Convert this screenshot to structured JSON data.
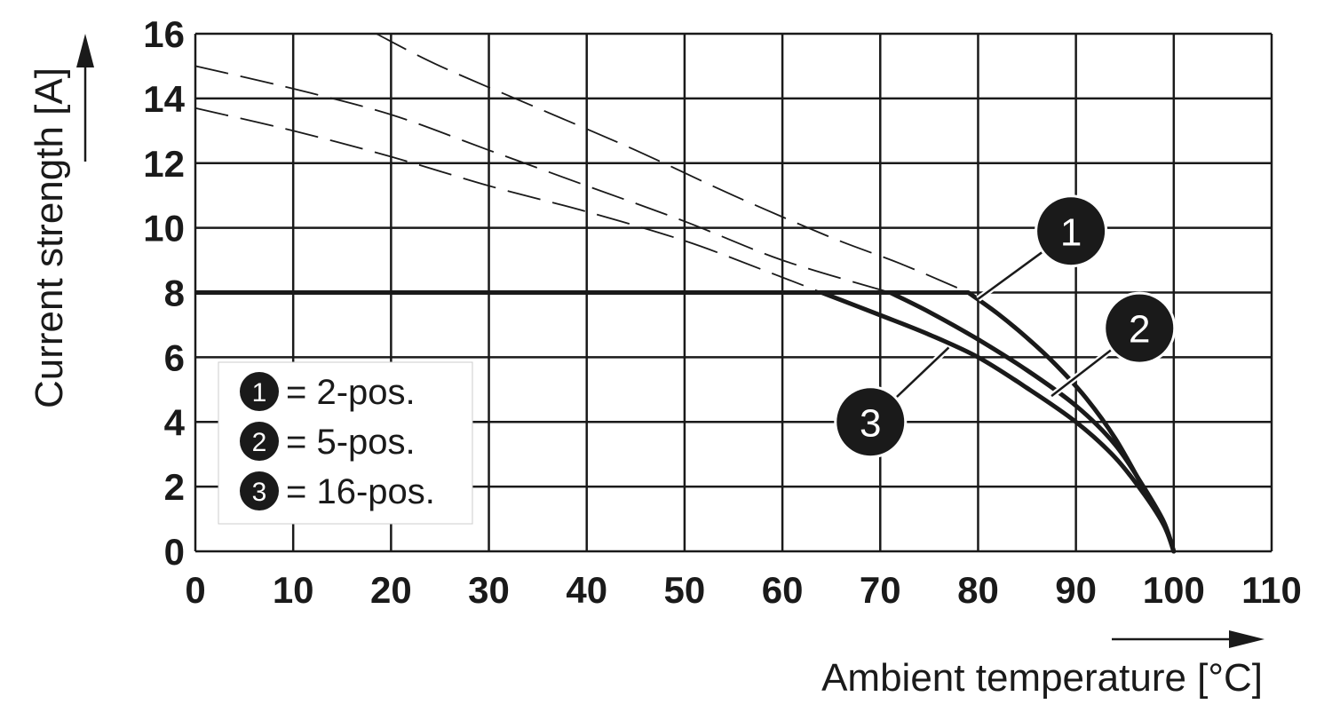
{
  "chart_data": {
    "type": "line",
    "xlabel": "Ambient temperature [°C]",
    "ylabel": "Current strength [A]",
    "xlim": [
      0,
      110
    ],
    "ylim": [
      0,
      16
    ],
    "x_ticks": [
      "0",
      "10",
      "20",
      "30",
      "40",
      "50",
      "60",
      "70",
      "80",
      "90",
      "100",
      "110"
    ],
    "y_ticks": [
      "0",
      "2",
      "4",
      "6",
      "8",
      "10",
      "12",
      "14",
      "16"
    ],
    "grid": true,
    "legend": {
      "placement": "lower-left",
      "entries": [
        {
          "marker": "1",
          "text": "= 2-pos."
        },
        {
          "marker": "2",
          "text": "= 5-pos."
        },
        {
          "marker": "3",
          "text": "= 16-pos."
        }
      ]
    },
    "limit_line": {
      "y": 8,
      "x_range": [
        0,
        79
      ]
    },
    "series": [
      {
        "marker": "1",
        "solid": [
          [
            79,
            8
          ],
          [
            82,
            7.35
          ],
          [
            85,
            6.6
          ],
          [
            88,
            5.75
          ],
          [
            91,
            4.75
          ],
          [
            94,
            3.5
          ],
          [
            97,
            1.9
          ],
          [
            99,
            0.85
          ],
          [
            100,
            0
          ]
        ],
        "dashed": [
          [
            18.5,
            16
          ],
          [
            25,
            15.0
          ],
          [
            35,
            13.7
          ],
          [
            45,
            12.4
          ],
          [
            55,
            11.0
          ],
          [
            65,
            9.7
          ],
          [
            72,
            8.9
          ],
          [
            79,
            8
          ]
        ]
      },
      {
        "marker": "2",
        "solid": [
          [
            71,
            8
          ],
          [
            75,
            7.4
          ],
          [
            80,
            6.55
          ],
          [
            85,
            5.6
          ],
          [
            90,
            4.5
          ],
          [
            94,
            3.3
          ],
          [
            97,
            1.95
          ],
          [
            99,
            0.9
          ],
          [
            100,
            0
          ]
        ],
        "dashed": [
          [
            0,
            15.0
          ],
          [
            10,
            14.3
          ],
          [
            20,
            13.5
          ],
          [
            30,
            12.4
          ],
          [
            40,
            11.3
          ],
          [
            50,
            10.2
          ],
          [
            60,
            9.0
          ],
          [
            71,
            8
          ]
        ]
      },
      {
        "marker": "3",
        "solid": [
          [
            64,
            8
          ],
          [
            70,
            7.3
          ],
          [
            75,
            6.7
          ],
          [
            80,
            6.0
          ],
          [
            85,
            5.05
          ],
          [
            90,
            4.0
          ],
          [
            94,
            2.9
          ],
          [
            97,
            1.75
          ],
          [
            99,
            0.8
          ],
          [
            100,
            0
          ]
        ],
        "dashed": [
          [
            0,
            13.7
          ],
          [
            10,
            13.0
          ],
          [
            20,
            12.2
          ],
          [
            30,
            11.3
          ],
          [
            40,
            10.5
          ],
          [
            50,
            9.6
          ],
          [
            58,
            8.7
          ],
          [
            64,
            8
          ]
        ]
      }
    ],
    "callouts": [
      {
        "marker": "1",
        "target": [
          80,
          7.8
        ],
        "label_at": [
          89.5,
          9.9
        ]
      },
      {
        "marker": "2",
        "target": [
          87.5,
          4.8
        ],
        "label_at": [
          96.5,
          6.9
        ]
      },
      {
        "marker": "3",
        "target": [
          77,
          6.3
        ],
        "label_at": [
          69,
          4.0
        ]
      }
    ]
  }
}
